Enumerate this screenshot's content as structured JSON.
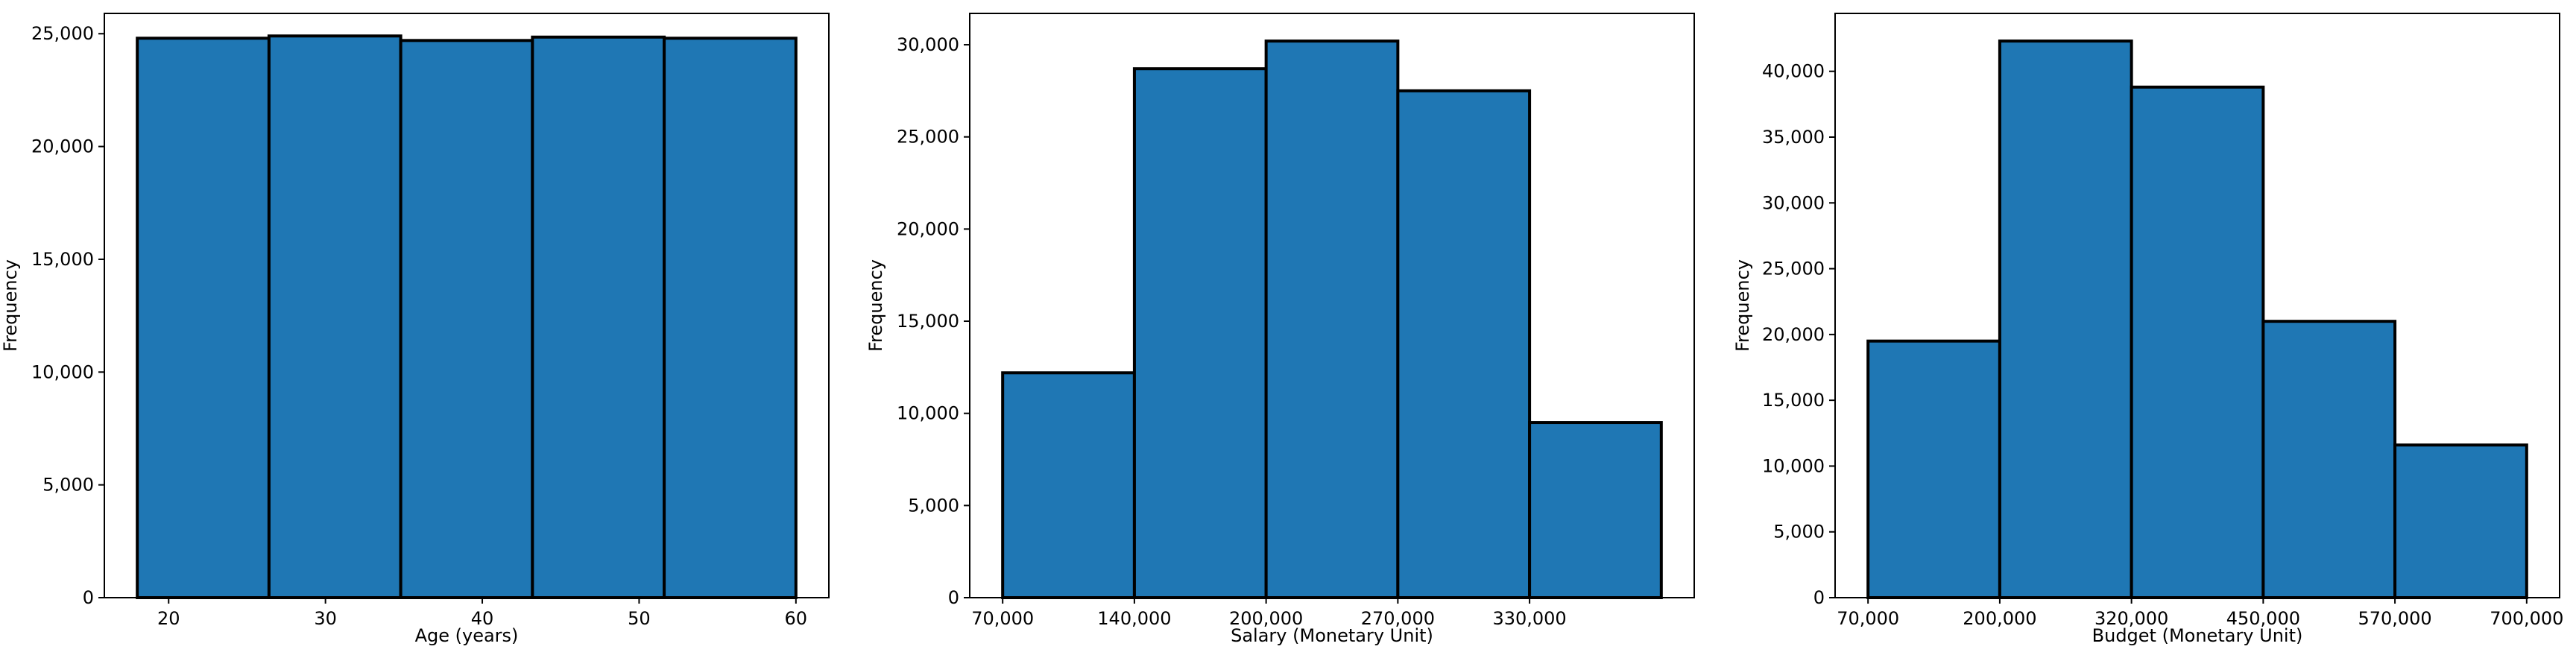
{
  "chart_data": [
    {
      "type": "bar",
      "bars": [
        {
          "x0": 18.0,
          "x1": 26.4,
          "value": 24800
        },
        {
          "x0": 26.4,
          "x1": 34.8,
          "value": 24900
        },
        {
          "x0": 34.8,
          "x1": 43.2,
          "value": 24700
        },
        {
          "x0": 43.2,
          "x1": 51.6,
          "value": 24850
        },
        {
          "x0": 51.6,
          "x1": 60.0,
          "value": 24800
        }
      ],
      "xlim": [
        15.9,
        62.1
      ],
      "ylim": [
        0,
        25900
      ],
      "xticks": [
        20,
        30,
        40,
        50,
        60
      ],
      "xtick_labels": [
        "20",
        "30",
        "40",
        "50",
        "60"
      ],
      "yticks": [
        0,
        5000,
        10000,
        15000,
        20000,
        25000
      ],
      "ytick_labels": [
        "0",
        "5,000",
        "10,000",
        "15,000",
        "20,000",
        "25,000"
      ],
      "xlabel": "Age (years)",
      "ylabel": "Frequency",
      "bar_color": "#1f77b4",
      "grid": false
    },
    {
      "type": "bar",
      "bars": [
        {
          "x0": 0,
          "x1": 1,
          "value": 12200
        },
        {
          "x0": 1,
          "x1": 2,
          "value": 28700
        },
        {
          "x0": 2,
          "x1": 3,
          "value": 30200
        },
        {
          "x0": 3,
          "x1": 4,
          "value": 27500
        },
        {
          "x0": 4,
          "x1": 5,
          "value": 9500
        }
      ],
      "xlim": [
        -0.25,
        5.25
      ],
      "ylim": [
        0,
        31700
      ],
      "xticks": [
        0,
        1,
        2,
        3,
        4
      ],
      "xtick_labels": [
        "70,000",
        "140,000",
        "200,000",
        "270,000",
        "330,000"
      ],
      "yticks": [
        0,
        5000,
        10000,
        15000,
        20000,
        25000,
        30000
      ],
      "ytick_labels": [
        "0",
        "5,000",
        "10,000",
        "15,000",
        "20,000",
        "25,000",
        "30,000"
      ],
      "xlabel": "Salary (Monetary Unit)",
      "ylabel": "Frequency",
      "bar_color": "#1f77b4",
      "grid": false
    },
    {
      "type": "bar",
      "bars": [
        {
          "x0": 0,
          "x1": 1,
          "value": 19500
        },
        {
          "x0": 1,
          "x1": 2,
          "value": 42300
        },
        {
          "x0": 2,
          "x1": 3,
          "value": 38800
        },
        {
          "x0": 3,
          "x1": 4,
          "value": 21000
        },
        {
          "x0": 4,
          "x1": 5,
          "value": 11600
        }
      ],
      "xlim": [
        -0.25,
        5.25
      ],
      "ylim": [
        0,
        44400
      ],
      "xticks": [
        0,
        1,
        2,
        3,
        4,
        5
      ],
      "xtick_labels": [
        "70,000",
        "200,000",
        "320,000",
        "450,000",
        "570,000",
        "700,000"
      ],
      "yticks": [
        0,
        5000,
        10000,
        15000,
        20000,
        25000,
        30000,
        35000,
        40000
      ],
      "ytick_labels": [
        "0",
        "5,000",
        "10,000",
        "15,000",
        "20,000",
        "25,000",
        "30,000",
        "35,000",
        "40,000"
      ],
      "xlabel": "Budget (Monetary Unit)",
      "ylabel": "Frequency",
      "bar_color": "#1f77b4",
      "grid": false
    }
  ]
}
